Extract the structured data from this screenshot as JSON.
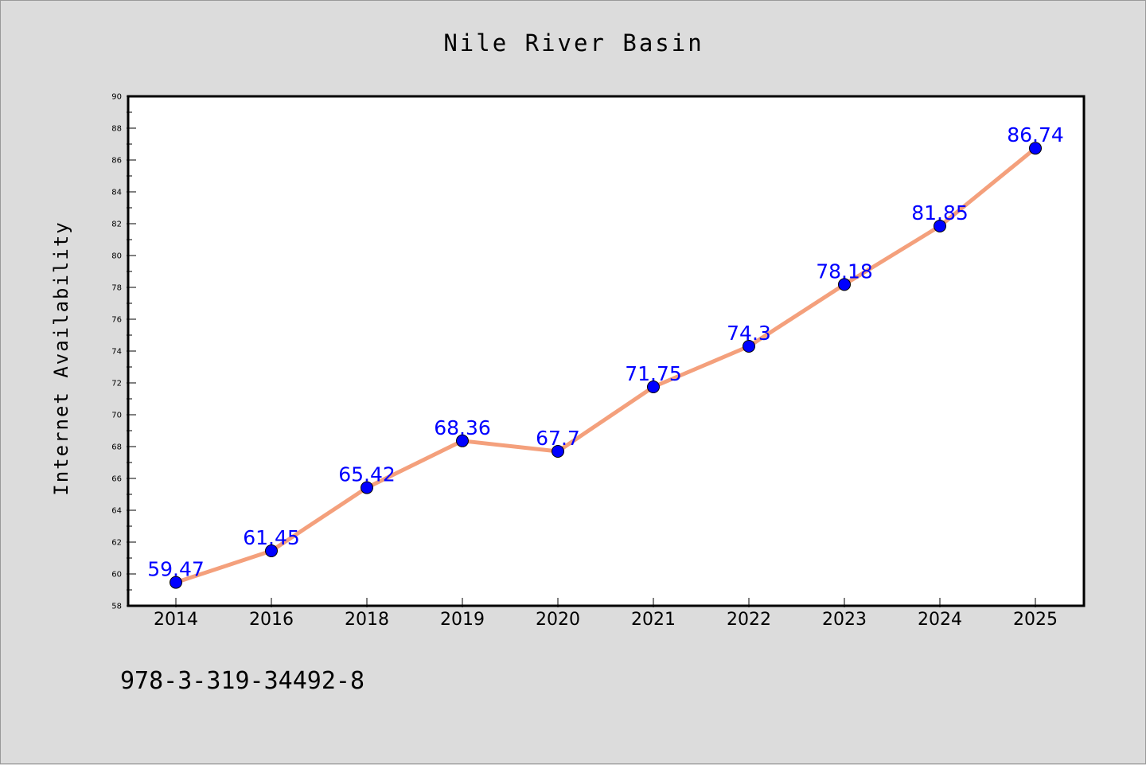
{
  "chart_data": {
    "type": "line",
    "title": "Nile River Basin",
    "xlabel": "",
    "ylabel": "Internet Availability",
    "categories": [
      "2014",
      "2016",
      "2018",
      "2019",
      "2020",
      "2021",
      "2022",
      "2023",
      "2024",
      "2025"
    ],
    "series": [
      {
        "values": [
          59.47,
          61.45,
          65.42,
          68.36,
          67.7,
          71.75,
          74.3,
          78.18,
          81.85,
          86.74
        ],
        "labels": [
          "59.47",
          "61.45",
          "65.42",
          "68.36",
          "67.7",
          "71.75",
          "74.3",
          "78.18",
          "81.85",
          "86.74"
        ],
        "line_color": "#f4a07c",
        "marker_color": "#0000ff",
        "label_color": "#0000ff"
      }
    ],
    "ylim": [
      58,
      90
    ],
    "yticks": [
      "58",
      "60",
      "62",
      "64",
      "66",
      "68",
      "70",
      "72",
      "74",
      "76",
      "78",
      "80",
      "82",
      "84",
      "86",
      "88",
      "90"
    ],
    "grid": false,
    "legend": "none"
  },
  "footer": {
    "code": "978-3-319-34492-8"
  },
  "colors": {
    "background": "#dcdcdc",
    "plot_area": "#ffffff",
    "axes": "#000000"
  }
}
